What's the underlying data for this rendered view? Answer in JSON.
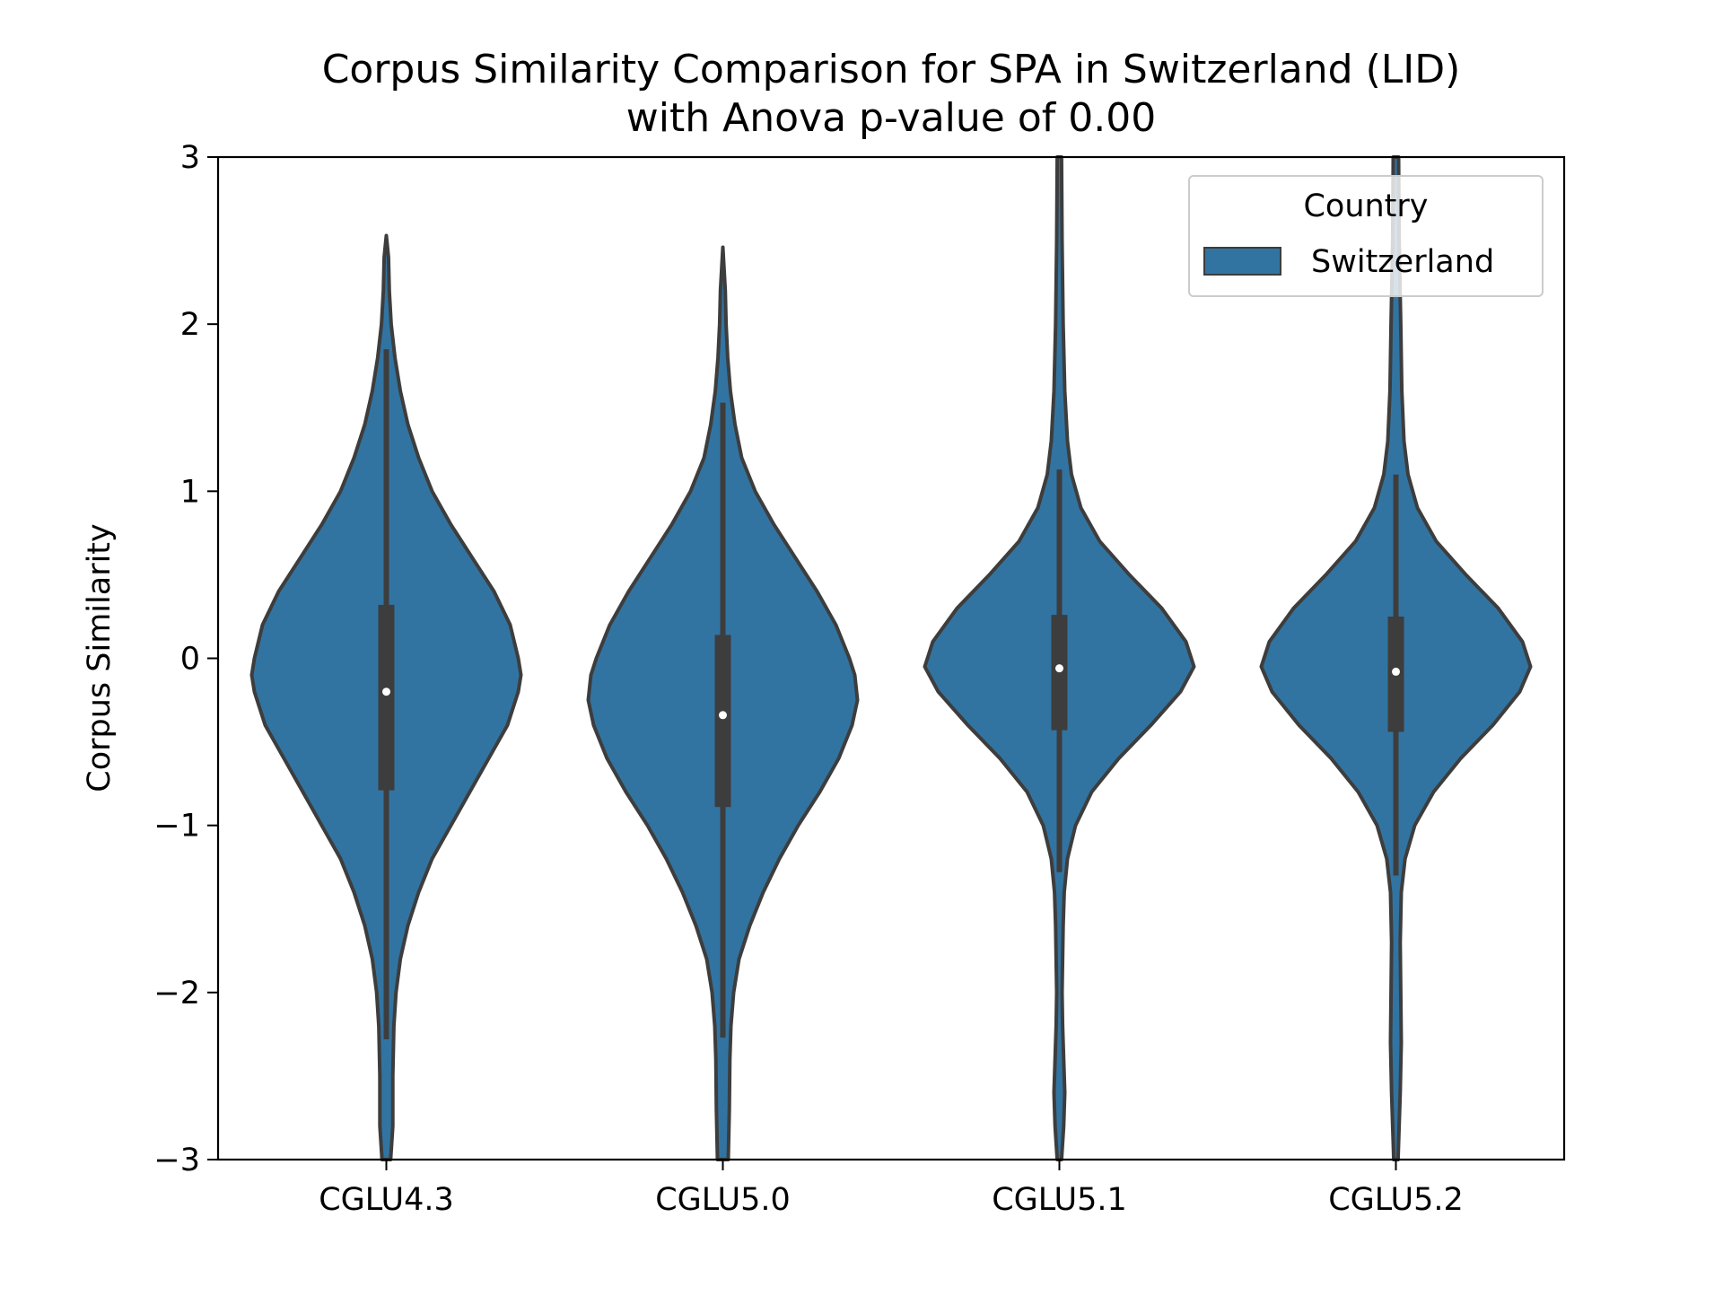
{
  "chart_data": {
    "type": "violin",
    "title_line1": "Corpus Similarity Comparison for SPA in Switzerland (LID)",
    "title_line2": "with Anova p-value of 0.00",
    "xlabel": "",
    "ylabel": "Corpus Similarity",
    "ylim": [
      -3,
      3
    ],
    "yticks": [
      -3,
      -2,
      -1,
      0,
      1,
      2,
      3
    ],
    "ytick_labels": [
      "−3",
      "−2",
      "−1",
      "0",
      "1",
      "2",
      "3"
    ],
    "categories": [
      "CGLU4.3",
      "CGLU5.0",
      "CGLU5.1",
      "CGLU5.2"
    ],
    "legend": {
      "title": "Country",
      "placement": "top-right",
      "entries": [
        {
          "label": "Switzerland",
          "color": "#3274a1"
        }
      ]
    },
    "colors": {
      "violin_fill": "#3274a1",
      "violin_edge": "#3d3d3d",
      "box": "#3d3d3d",
      "median": "#ffffff"
    },
    "series": [
      {
        "name": "Switzerland",
        "violins": [
          {
            "category": "CGLU4.3",
            "median": -0.2,
            "q1": -0.79,
            "q3": 0.32,
            "whisker_low": -2.28,
            "whisker_high": 1.85,
            "profile": [
              [
                -3.0,
                0.016
              ],
              [
                -2.8,
                0.024
              ],
              [
                -2.5,
                0.024
              ],
              [
                -2.2,
                0.028
              ],
              [
                -2.0,
                0.036
              ],
              [
                -1.8,
                0.052
              ],
              [
                -1.6,
                0.08
              ],
              [
                -1.4,
                0.12
              ],
              [
                -1.2,
                0.17
              ],
              [
                -1.0,
                0.24
              ],
              [
                -0.8,
                0.31
              ],
              [
                -0.6,
                0.38
              ],
              [
                -0.4,
                0.45
              ],
              [
                -0.2,
                0.49
              ],
              [
                -0.1,
                0.5
              ],
              [
                0.0,
                0.49
              ],
              [
                0.2,
                0.46
              ],
              [
                0.4,
                0.4
              ],
              [
                0.6,
                0.32
              ],
              [
                0.8,
                0.24
              ],
              [
                1.0,
                0.17
              ],
              [
                1.2,
                0.12
              ],
              [
                1.4,
                0.08
              ],
              [
                1.6,
                0.052
              ],
              [
                1.8,
                0.032
              ],
              [
                2.0,
                0.018
              ],
              [
                2.2,
                0.011
              ],
              [
                2.4,
                0.008
              ],
              [
                2.53,
                0.0
              ]
            ]
          },
          {
            "category": "CGLU5.0",
            "median": -0.34,
            "q1": -0.89,
            "q3": 0.14,
            "whisker_low": -2.27,
            "whisker_high": 1.53,
            "profile": [
              [
                -3.0,
                0.02
              ],
              [
                -2.7,
                0.024
              ],
              [
                -2.4,
                0.026
              ],
              [
                -2.2,
                0.03
              ],
              [
                -2.0,
                0.04
              ],
              [
                -1.8,
                0.06
              ],
              [
                -1.6,
                0.1
              ],
              [
                -1.4,
                0.15
              ],
              [
                -1.2,
                0.21
              ],
              [
                -1.0,
                0.28
              ],
              [
                -0.8,
                0.36
              ],
              [
                -0.6,
                0.43
              ],
              [
                -0.4,
                0.48
              ],
              [
                -0.25,
                0.5
              ],
              [
                -0.1,
                0.49
              ],
              [
                0.0,
                0.47
              ],
              [
                0.2,
                0.42
              ],
              [
                0.4,
                0.35
              ],
              [
                0.6,
                0.27
              ],
              [
                0.8,
                0.19
              ],
              [
                1.0,
                0.12
              ],
              [
                1.2,
                0.07
              ],
              [
                1.4,
                0.045
              ],
              [
                1.6,
                0.028
              ],
              [
                1.8,
                0.018
              ],
              [
                2.0,
                0.012
              ],
              [
                2.2,
                0.009
              ],
              [
                2.46,
                0.0
              ]
            ]
          },
          {
            "category": "CGLU5.1",
            "median": -0.06,
            "q1": -0.43,
            "q3": 0.26,
            "whisker_low": -1.28,
            "whisker_high": 1.13,
            "profile": [
              [
                -3.0,
                0.008
              ],
              [
                -2.8,
                0.016
              ],
              [
                -2.6,
                0.02
              ],
              [
                -2.4,
                0.016
              ],
              [
                -2.2,
                0.012
              ],
              [
                -2.0,
                0.01
              ],
              [
                -1.8,
                0.012
              ],
              [
                -1.6,
                0.014
              ],
              [
                -1.4,
                0.018
              ],
              [
                -1.2,
                0.03
              ],
              [
                -1.0,
                0.06
              ],
              [
                -0.8,
                0.12
              ],
              [
                -0.6,
                0.22
              ],
              [
                -0.4,
                0.34
              ],
              [
                -0.2,
                0.45
              ],
              [
                -0.05,
                0.5
              ],
              [
                0.1,
                0.47
              ],
              [
                0.3,
                0.38
              ],
              [
                0.5,
                0.26
              ],
              [
                0.7,
                0.15
              ],
              [
                0.9,
                0.08
              ],
              [
                1.1,
                0.045
              ],
              [
                1.3,
                0.03
              ],
              [
                1.6,
                0.02
              ],
              [
                2.0,
                0.014
              ],
              [
                2.5,
                0.01
              ],
              [
                3.0,
                0.008
              ]
            ]
          },
          {
            "category": "CGLU5.2",
            "median": -0.08,
            "q1": -0.44,
            "q3": 0.25,
            "whisker_low": -1.3,
            "whisker_high": 1.1,
            "profile": [
              [
                -3.0,
                0.008
              ],
              [
                -2.6,
                0.016
              ],
              [
                -2.3,
                0.02
              ],
              [
                -2.0,
                0.018
              ],
              [
                -1.7,
                0.016
              ],
              [
                -1.4,
                0.02
              ],
              [
                -1.2,
                0.034
              ],
              [
                -1.0,
                0.07
              ],
              [
                -0.8,
                0.14
              ],
              [
                -0.6,
                0.24
              ],
              [
                -0.4,
                0.36
              ],
              [
                -0.2,
                0.46
              ],
              [
                -0.05,
                0.5
              ],
              [
                0.1,
                0.47
              ],
              [
                0.3,
                0.38
              ],
              [
                0.5,
                0.26
              ],
              [
                0.7,
                0.15
              ],
              [
                0.9,
                0.08
              ],
              [
                1.1,
                0.045
              ],
              [
                1.3,
                0.03
              ],
              [
                1.6,
                0.022
              ],
              [
                2.0,
                0.018
              ],
              [
                2.5,
                0.012
              ],
              [
                3.0,
                0.01
              ]
            ]
          }
        ]
      }
    ]
  }
}
